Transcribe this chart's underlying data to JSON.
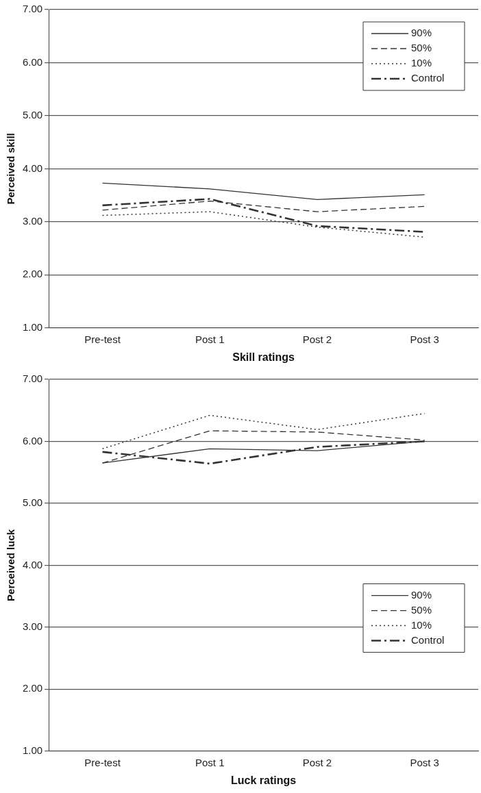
{
  "chart_data": [
    {
      "type": "line",
      "xlabel": "Skill ratings",
      "ylabel": "Perceived skill",
      "categories": [
        "Pre-test",
        "Post 1",
        "Post 2",
        "Post 3"
      ],
      "series": [
        {
          "name": "90%",
          "color": "#333333",
          "line_style": "solid",
          "values": [
            3.73,
            3.62,
            3.42,
            3.51
          ]
        },
        {
          "name": "50%",
          "color": "#333333",
          "line_style": "dashed",
          "values": [
            3.22,
            3.39,
            3.19,
            3.29
          ]
        },
        {
          "name": "10%",
          "color": "#333333",
          "line_style": "dotted",
          "values": [
            3.12,
            3.19,
            2.9,
            2.71
          ]
        },
        {
          "name": "Control",
          "color": "#333333",
          "line_style": "dashdot",
          "values": [
            3.31,
            3.43,
            2.92,
            2.81
          ]
        }
      ],
      "ylim": [
        1,
        7
      ],
      "yticks": [
        {
          "value": 1,
          "label": "1.00"
        },
        {
          "value": 2,
          "label": "2.00"
        },
        {
          "value": 3,
          "label": "3.00"
        },
        {
          "value": 4,
          "label": "4.00"
        },
        {
          "value": 5,
          "label": "5.00"
        },
        {
          "value": 6,
          "label": "6.00"
        },
        {
          "value": 7,
          "label": "7.00"
        }
      ],
      "grid": "y",
      "legend": "top right",
      "marker": "none"
    },
    {
      "type": "line",
      "xlabel": "Luck ratings",
      "ylabel": "Perceived luck",
      "categories": [
        "Pre-test",
        "Post 1",
        "Post 2",
        "Post 3"
      ],
      "series": [
        {
          "name": "90%",
          "color": "#333333",
          "line_style": "solid",
          "values": [
            5.65,
            5.88,
            5.85,
            6.0
          ]
        },
        {
          "name": "50%",
          "color": "#333333",
          "line_style": "dashed",
          "values": [
            5.65,
            6.17,
            6.15,
            6.02
          ]
        },
        {
          "name": "10%",
          "color": "#333333",
          "line_style": "dotted",
          "values": [
            5.88,
            6.42,
            6.19,
            6.45
          ]
        },
        {
          "name": "Control",
          "color": "#333333",
          "line_style": "dashdot",
          "values": [
            5.83,
            5.64,
            5.91,
            6.0
          ]
        }
      ],
      "ylim": [
        1,
        7
      ],
      "yticks": [
        {
          "value": 1,
          "label": "1.00"
        },
        {
          "value": 2,
          "label": "2.00"
        },
        {
          "value": 3,
          "label": "3.00"
        },
        {
          "value": 4,
          "label": "4.00"
        },
        {
          "value": 5,
          "label": "5.00"
        },
        {
          "value": 6,
          "label": "6.00"
        },
        {
          "value": 7,
          "label": "7.00"
        }
      ],
      "grid": "y",
      "legend": "right",
      "marker": "none"
    }
  ]
}
